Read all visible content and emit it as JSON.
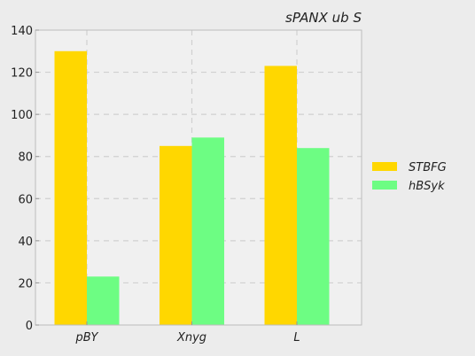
{
  "chart_data": {
    "type": "bar",
    "title": "sPANX ub  S",
    "xlabel": "",
    "ylabel": "",
    "categories": [
      "pBY",
      "Xnyg",
      "L"
    ],
    "series": [
      {
        "name": "STBFG",
        "values": [
          130,
          85,
          123
        ],
        "color": "#FFD700"
      },
      {
        "name": "hBSyk",
        "values": [
          23,
          89,
          84
        ],
        "color": "#6DFD83"
      }
    ],
    "ylim": [
      0,
      140
    ],
    "yticks": [
      0,
      20,
      40,
      60,
      80,
      100,
      120,
      140
    ],
    "grid": true,
    "legend_position": "right"
  }
}
